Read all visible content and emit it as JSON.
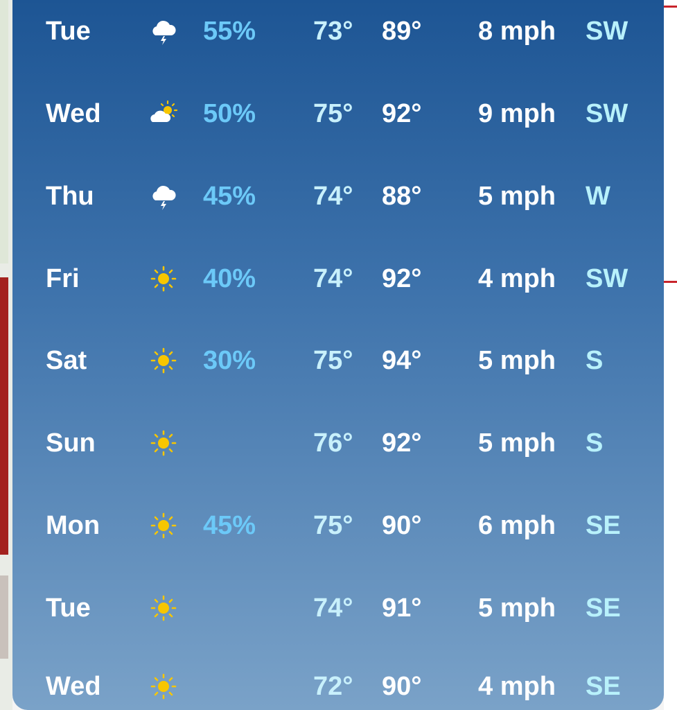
{
  "forecast": {
    "rows": [
      {
        "day": "Tue",
        "precip": "55%",
        "low": "73°",
        "high": "89°",
        "wind": "8 mph",
        "direction": "SW"
      },
      {
        "day": "Wed",
        "precip": "50%",
        "low": "75°",
        "high": "92°",
        "wind": "9 mph",
        "direction": "SW"
      },
      {
        "day": "Thu",
        "precip": "45%",
        "low": "74°",
        "high": "88°",
        "wind": "5 mph",
        "direction": "W"
      },
      {
        "day": "Fri",
        "precip": "40%",
        "low": "74°",
        "high": "92°",
        "wind": "4 mph",
        "direction": "SW"
      },
      {
        "day": "Sat",
        "precip": "30%",
        "low": "75°",
        "high": "94°",
        "wind": "5 mph",
        "direction": "S"
      },
      {
        "day": "Sun",
        "low": "76°",
        "high": "92°",
        "wind": "5 mph",
        "direction": "S"
      },
      {
        "day": "Mon",
        "precip": "45%",
        "low": "75°",
        "high": "90°",
        "wind": "6 mph",
        "direction": "SE"
      },
      {
        "day": "Tue",
        "low": "74°",
        "high": "91°",
        "wind": "5 mph",
        "direction": "SE"
      },
      {
        "day": "Wed",
        "low": "72°",
        "high": "90°",
        "wind": "4 mph",
        "direction": "SE"
      }
    ]
  }
}
